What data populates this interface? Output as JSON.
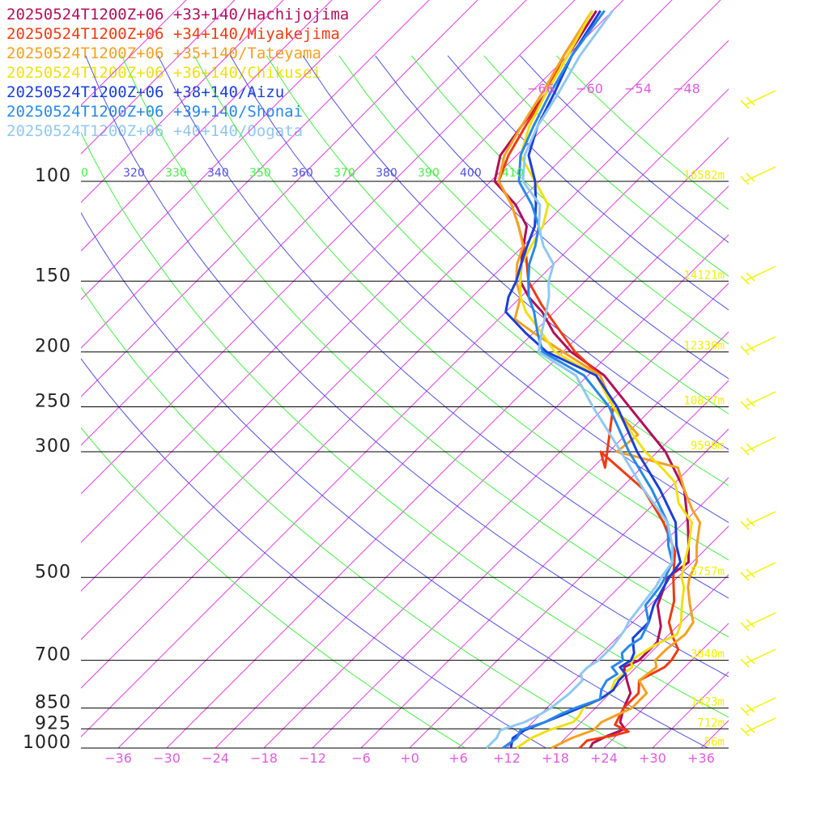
{
  "chart_data": {
    "type": "line",
    "chart_kind": "skew-T log-p sounding",
    "grid": true,
    "legend_position": "top-left",
    "pressure_levels_hpa": [
      100,
      150,
      200,
      250,
      300,
      500,
      700,
      850,
      925,
      1000
    ],
    "pressure_labels": [
      "100",
      "150",
      "200",
      "250",
      "300",
      "500",
      "700",
      "850",
      "925",
      "1000"
    ],
    "temperature_ticks_c": [
      -36,
      -30,
      -24,
      -18,
      -12,
      -6,
      0,
      6,
      12,
      18,
      24,
      30,
      36
    ],
    "temperature_tick_labels": [
      "−36",
      "−30",
      "−24",
      "−18",
      "−12",
      "−6",
      "+0",
      "+6",
      "+12",
      "+18",
      "+24",
      "+30",
      "+36"
    ],
    "top_isotherm_labels": [
      "−66",
      "−60",
      "−54",
      "−48"
    ],
    "theta_labels": [
      {
        "text": "0",
        "color": "#44ee44"
      },
      {
        "text": "320",
        "color": "#5050e0"
      },
      {
        "text": "330",
        "color": "#44ee44"
      },
      {
        "text": "340",
        "color": "#5050e0"
      },
      {
        "text": "350",
        "color": "#44ee44"
      },
      {
        "text": "360",
        "color": "#5050e0"
      },
      {
        "text": "370",
        "color": "#44ee44"
      },
      {
        "text": "380",
        "color": "#5050e0"
      },
      {
        "text": "390",
        "color": "#44ee44"
      },
      {
        "text": "400",
        "color": "#5050e0"
      },
      {
        "text": "410",
        "color": "#44ee44"
      }
    ],
    "height_labels": [
      {
        "p": 100,
        "text": "16582m"
      },
      {
        "p": 150,
        "text": "14121m"
      },
      {
        "p": 200,
        "text": "12330m"
      },
      {
        "p": 250,
        "text": "10877m"
      },
      {
        "p": 300,
        "text": "9590m"
      },
      {
        "p": 500,
        "text": "5757m"
      },
      {
        "p": 700,
        "text": "3040m"
      },
      {
        "p": 850,
        "text": "1423m"
      },
      {
        "p": 925,
        "text": "712m"
      },
      {
        "p": 1000,
        "text": "56m"
      }
    ],
    "colors": {
      "isotherm": "#e040e0",
      "dry_adiabat": "#44ee44",
      "saturated_adiabat": "#5050e0",
      "isobar": "#000000",
      "height_label": "#f2f200",
      "wind_barb": "#f2f200"
    },
    "series": [
      {
        "name": "20250524T1200Z+06 +33+140/Hachijojima",
        "color": "#b0105a",
        "points": [
          [
            1000,
            22.3
          ],
          [
            980,
            22.0
          ],
          [
            950,
            23.0
          ],
          [
            925,
            24.2
          ],
          [
            900,
            22.8
          ],
          [
            850,
            21.5
          ],
          [
            800,
            20.5
          ],
          [
            760,
            18.5
          ],
          [
            720,
            16.5
          ],
          [
            700,
            17.5
          ],
          [
            650,
            17.5
          ],
          [
            610,
            16.0
          ],
          [
            560,
            13.0
          ],
          [
            500,
            10.8
          ],
          [
            470,
            11.5
          ],
          [
            440,
            9.5
          ],
          [
            400,
            6.5
          ],
          [
            350,
            2.0
          ],
          [
            300,
            -5.0
          ],
          [
            250,
            -15.0
          ],
          [
            220,
            -22.0
          ],
          [
            200,
            -29.0
          ],
          [
            185,
            -33.5
          ],
          [
            170,
            -37.5
          ],
          [
            160,
            -41.0
          ],
          [
            150,
            -44.0
          ],
          [
            135,
            -47.0
          ],
          [
            120,
            -50.0
          ],
          [
            110,
            -54.0
          ],
          [
            100,
            -59.5
          ],
          [
            90,
            -62.0
          ],
          [
            80,
            -63.0
          ],
          [
            70,
            -64.0
          ],
          [
            60,
            -66.0
          ],
          [
            50,
            -68.0
          ]
        ]
      },
      {
        "name": "20250524T1200Z+06 +34+140/Miyakejima",
        "color": "#f03a10",
        "points": [
          [
            1000,
            21.0
          ],
          [
            970,
            21.0
          ],
          [
            950,
            23.7
          ],
          [
            935,
            25.0
          ],
          [
            910,
            22.5
          ],
          [
            880,
            22.0
          ],
          [
            850,
            21.5
          ],
          [
            800,
            21.5
          ],
          [
            760,
            20.0
          ],
          [
            720,
            21.5
          ],
          [
            700,
            21.5
          ],
          [
            670,
            21.0
          ],
          [
            640,
            19.0
          ],
          [
            600,
            16.5
          ],
          [
            550,
            14.5
          ],
          [
            500,
            11.5
          ],
          [
            450,
            8.5
          ],
          [
            400,
            3.5
          ],
          [
            350,
            -3.0
          ],
          [
            300,
            -13.0
          ],
          [
            320,
            -10.5
          ],
          [
            250,
            -17.0
          ],
          [
            220,
            -22.5
          ],
          [
            200,
            -28.5
          ],
          [
            180,
            -34.0
          ],
          [
            165,
            -38.5
          ],
          [
            150,
            -43.0
          ],
          [
            135,
            -46.5
          ],
          [
            120,
            -51.0
          ],
          [
            110,
            -54.5
          ],
          [
            100,
            -59.0
          ],
          [
            90,
            -61.0
          ],
          [
            80,
            -62.5
          ],
          [
            70,
            -64.0
          ],
          [
            60,
            -66.5
          ],
          [
            50,
            -68.5
          ]
        ]
      },
      {
        "name": "20250524T1200Z+06 +35+140/Tateyama",
        "color": "#f5a020",
        "points": [
          [
            1000,
            17.5
          ],
          [
            960,
            18.8
          ],
          [
            930,
            20.5
          ],
          [
            900,
            20.5
          ],
          [
            850,
            22.5
          ],
          [
            800,
            22.5
          ],
          [
            760,
            20.0
          ],
          [
            720,
            20.5
          ],
          [
            700,
            19.5
          ],
          [
            670,
            19.5
          ],
          [
            630,
            20.0
          ],
          [
            600,
            19.5
          ],
          [
            560,
            17.0
          ],
          [
            520,
            14.5
          ],
          [
            500,
            13.5
          ],
          [
            470,
            12.5
          ],
          [
            440,
            10.5
          ],
          [
            400,
            8.0
          ],
          [
            380,
            5.5
          ],
          [
            350,
            2.0
          ],
          [
            320,
            -1.5
          ],
          [
            300,
            -11.0
          ],
          [
            280,
            -10.5
          ],
          [
            250,
            -17.0
          ],
          [
            220,
            -22.5
          ],
          [
            200,
            -30.0
          ],
          [
            185,
            -36.0
          ],
          [
            175,
            -40.0
          ],
          [
            160,
            -42.0
          ],
          [
            150,
            -44.5
          ],
          [
            140,
            -46.5
          ],
          [
            130,
            -48.0
          ],
          [
            120,
            -51.0
          ],
          [
            110,
            -54.5
          ],
          [
            100,
            -59.0
          ],
          [
            90,
            -61.5
          ],
          [
            80,
            -63.0
          ],
          [
            70,
            -64.5
          ],
          [
            60,
            -66.5
          ],
          [
            50,
            -68.5
          ]
        ]
      },
      {
        "name": "20250524T1200Z+06 +36+140/Chikusei",
        "color": "#f0e010",
        "points": [
          [
            1000,
            13.2
          ],
          [
            960,
            13.8
          ],
          [
            930,
            15.0
          ],
          [
            900,
            17.0
          ],
          [
            880,
            17.0
          ],
          [
            850,
            16.5
          ],
          [
            800,
            18.0
          ],
          [
            760,
            17.0
          ],
          [
            720,
            17.5
          ],
          [
            700,
            16.5
          ],
          [
            660,
            17.5
          ],
          [
            630,
            19.0
          ],
          [
            600,
            18.0
          ],
          [
            560,
            16.0
          ],
          [
            520,
            14.0
          ],
          [
            500,
            12.5
          ],
          [
            470,
            11.0
          ],
          [
            440,
            9.5
          ],
          [
            400,
            7.0
          ],
          [
            370,
            3.0
          ],
          [
            340,
            0.0
          ],
          [
            320,
            -3.5
          ],
          [
            300,
            -7.5
          ],
          [
            250,
            -17.0
          ],
          [
            220,
            -23.0
          ],
          [
            200,
            -31.0
          ],
          [
            185,
            -35.0
          ],
          [
            170,
            -39.5
          ],
          [
            160,
            -42.0
          ],
          [
            150,
            -44.0
          ],
          [
            140,
            -46.0
          ],
          [
            130,
            -47.0
          ],
          [
            120,
            -48.0
          ],
          [
            110,
            -50.0
          ],
          [
            100,
            -54.5
          ],
          [
            90,
            -59.5
          ],
          [
            80,
            -62.0
          ],
          [
            70,
            -64.0
          ],
          [
            60,
            -66.0
          ],
          [
            50,
            -68.5
          ]
        ]
      },
      {
        "name": "20250524T1200Z+06 +38+140/Aizu",
        "color": "#1a40d8",
        "points": [
          [
            1000,
            12.5
          ],
          [
            960,
            11.5
          ],
          [
            930,
            12.0
          ],
          [
            900,
            13.5
          ],
          [
            870,
            15.0
          ],
          [
            850,
            16.0
          ],
          [
            820,
            17.5
          ],
          [
            790,
            18.0
          ],
          [
            760,
            17.5
          ],
          [
            740,
            17.5
          ],
          [
            720,
            16.0
          ],
          [
            700,
            16.5
          ],
          [
            680,
            16.0
          ],
          [
            660,
            15.0
          ],
          [
            640,
            14.0
          ],
          [
            620,
            14.0
          ],
          [
            600,
            14.0
          ],
          [
            560,
            12.5
          ],
          [
            520,
            11.5
          ],
          [
            500,
            11.0
          ],
          [
            470,
            10.5
          ],
          [
            440,
            8.0
          ],
          [
            400,
            5.0
          ],
          [
            350,
            -1.0
          ],
          [
            300,
            -8.5
          ],
          [
            250,
            -16.5
          ],
          [
            220,
            -23.0
          ],
          [
            200,
            -32.0
          ],
          [
            185,
            -37.0
          ],
          [
            170,
            -42.0
          ],
          [
            160,
            -43.5
          ],
          [
            150,
            -44.5
          ],
          [
            140,
            -46.0
          ],
          [
            130,
            -47.5
          ],
          [
            120,
            -49.0
          ],
          [
            110,
            -51.5
          ],
          [
            100,
            -54.5
          ],
          [
            90,
            -58.5
          ],
          [
            80,
            -61.0
          ],
          [
            70,
            -63.0
          ],
          [
            60,
            -65.5
          ],
          [
            50,
            -67.5
          ]
        ]
      },
      {
        "name": "20250524T1200Z+06 +39+140/Shonai",
        "color": "#2888e8",
        "points": [
          [
            1000,
            11.5
          ],
          [
            960,
            12.0
          ],
          [
            930,
            11.5
          ],
          [
            900,
            13.5
          ],
          [
            870,
            14.5
          ],
          [
            850,
            15.5
          ],
          [
            820,
            17.5
          ],
          [
            790,
            16.5
          ],
          [
            760,
            16.0
          ],
          [
            740,
            16.5
          ],
          [
            720,
            15.0
          ],
          [
            700,
            15.5
          ],
          [
            680,
            14.5
          ],
          [
            660,
            14.5
          ],
          [
            640,
            15.0
          ],
          [
            600,
            14.0
          ],
          [
            560,
            11.5
          ],
          [
            520,
            11.0
          ],
          [
            500,
            10.5
          ],
          [
            470,
            9.5
          ],
          [
            440,
            7.0
          ],
          [
            400,
            4.0
          ],
          [
            350,
            -2.0
          ],
          [
            300,
            -9.5
          ],
          [
            250,
            -17.5
          ],
          [
            220,
            -24.5
          ],
          [
            200,
            -32.5
          ],
          [
            185,
            -35.5
          ],
          [
            170,
            -38.5
          ],
          [
            160,
            -41.0
          ],
          [
            150,
            -43.0
          ],
          [
            140,
            -45.0
          ],
          [
            130,
            -46.5
          ],
          [
            120,
            -48.5
          ],
          [
            110,
            -52.0
          ],
          [
            100,
            -56.5
          ],
          [
            90,
            -59.5
          ],
          [
            80,
            -61.5
          ],
          [
            70,
            -63.5
          ],
          [
            60,
            -65.5
          ],
          [
            50,
            -67.0
          ]
        ]
      },
      {
        "name": "20250524T1200Z+06 +40+140/Oogata",
        "color": "#90c8f0",
        "points": [
          [
            1000,
            9.5
          ],
          [
            960,
            9.5
          ],
          [
            930,
            9.0
          ],
          [
            900,
            11.0
          ],
          [
            870,
            12.0
          ],
          [
            850,
            12.5
          ],
          [
            800,
            13.0
          ],
          [
            760,
            13.0
          ],
          [
            740,
            12.0
          ],
          [
            720,
            12.0
          ],
          [
            700,
            12.5
          ],
          [
            660,
            12.5
          ],
          [
            620,
            12.0
          ],
          [
            600,
            11.5
          ],
          [
            560,
            11.0
          ],
          [
            520,
            10.5
          ],
          [
            500,
            10.0
          ],
          [
            470,
            9.5
          ],
          [
            440,
            7.5
          ],
          [
            400,
            4.0
          ],
          [
            350,
            -3.0
          ],
          [
            300,
            -10.5
          ],
          [
            250,
            -19.5
          ],
          [
            220,
            -25.5
          ],
          [
            200,
            -33.0
          ],
          [
            185,
            -35.0
          ],
          [
            170,
            -37.0
          ],
          [
            160,
            -38.5
          ],
          [
            150,
            -40.5
          ],
          [
            140,
            -42.0
          ],
          [
            130,
            -45.5
          ],
          [
            120,
            -48.5
          ],
          [
            110,
            -51.0
          ],
          [
            100,
            -56.0
          ],
          [
            90,
            -59.0
          ],
          [
            80,
            -61.0
          ],
          [
            70,
            -62.5
          ],
          [
            60,
            -64.5
          ],
          [
            50,
            -66.0
          ]
        ]
      }
    ]
  }
}
